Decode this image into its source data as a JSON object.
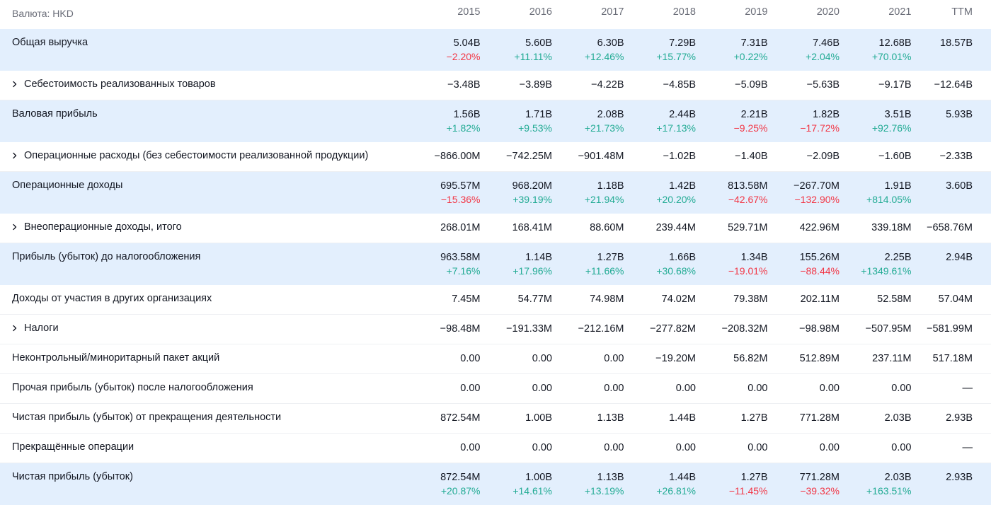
{
  "header": {
    "currency_label": "Валюта: HKD",
    "columns": [
      "2015",
      "2016",
      "2017",
      "2018",
      "2019",
      "2020",
      "2021",
      "TTM"
    ]
  },
  "rows": [
    {
      "label": "Общая выручка",
      "values": [
        "5.04B",
        "5.60B",
        "6.30B",
        "7.29B",
        "7.31B",
        "7.46B",
        "12.68B",
        "18.57B"
      ],
      "changes": [
        "−2.20%",
        "+11.11%",
        "+12.46%",
        "+15.77%",
        "+0.22%",
        "+2.04%",
        "+70.01%",
        ""
      ]
    },
    {
      "label": "Себестоимость реализованных товаров",
      "expandable": true,
      "values": [
        "−3.48B",
        "−3.89B",
        "−4.22B",
        "−4.85B",
        "−5.09B",
        "−5.63B",
        "−9.17B",
        "−12.64B"
      ]
    },
    {
      "label": "Валовая прибыль",
      "values": [
        "1.56B",
        "1.71B",
        "2.08B",
        "2.44B",
        "2.21B",
        "1.82B",
        "3.51B",
        "5.93B"
      ],
      "changes": [
        "+1.82%",
        "+9.53%",
        "+21.73%",
        "+17.13%",
        "−9.25%",
        "−17.72%",
        "+92.76%",
        ""
      ]
    },
    {
      "label": "Операционные расходы (без себестоимости реализованной продукции)",
      "expandable": true,
      "values": [
        "−866.00M",
        "−742.25M",
        "−901.48M",
        "−1.02B",
        "−1.40B",
        "−2.09B",
        "−1.60B",
        "−2.33B"
      ]
    },
    {
      "label": "Операционные доходы",
      "values": [
        "695.57M",
        "968.20M",
        "1.18B",
        "1.42B",
        "813.58M",
        "−267.70M",
        "1.91B",
        "3.60B"
      ],
      "changes": [
        "−15.36%",
        "+39.19%",
        "+21.94%",
        "+20.20%",
        "−42.67%",
        "−132.90%",
        "+814.05%",
        ""
      ]
    },
    {
      "label": "Внеоперационные доходы, итого",
      "expandable": true,
      "values": [
        "268.01M",
        "168.41M",
        "88.60M",
        "239.44M",
        "529.71M",
        "422.96M",
        "339.18M",
        "−658.76M"
      ]
    },
    {
      "label": "Прибыль (убыток) до налогообложения",
      "values": [
        "963.58M",
        "1.14B",
        "1.27B",
        "1.66B",
        "1.34B",
        "155.26M",
        "2.25B",
        "2.94B"
      ],
      "changes": [
        "+7.16%",
        "+17.96%",
        "+11.66%",
        "+30.68%",
        "−19.01%",
        "−88.44%",
        "+1349.61%",
        ""
      ]
    },
    {
      "label": "Доходы от участия в других организациях",
      "values": [
        "7.45M",
        "54.77M",
        "74.98M",
        "74.02M",
        "79.38M",
        "202.11M",
        "52.58M",
        "57.04M"
      ]
    },
    {
      "label": "Налоги",
      "expandable": true,
      "values": [
        "−98.48M",
        "−191.33M",
        "−212.16M",
        "−277.82M",
        "−208.32M",
        "−98.98M",
        "−507.95M",
        "−581.99M"
      ]
    },
    {
      "label": "Неконтрольный/миноритарный пакет акций",
      "values": [
        "0.00",
        "0.00",
        "0.00",
        "−19.20M",
        "56.82M",
        "512.89M",
        "237.11M",
        "517.18M"
      ]
    },
    {
      "label": "Прочая прибыль (убыток) после налогообложения",
      "values": [
        "0.00",
        "0.00",
        "0.00",
        "0.00",
        "0.00",
        "0.00",
        "0.00",
        "—"
      ]
    },
    {
      "label": "Чистая прибыль (убыток) от прекращения деятельности",
      "values": [
        "872.54M",
        "1.00B",
        "1.13B",
        "1.44B",
        "1.27B",
        "771.28M",
        "2.03B",
        "2.93B"
      ]
    },
    {
      "label": "Прекращённые операции",
      "values": [
        "0.00",
        "0.00",
        "0.00",
        "0.00",
        "0.00",
        "0.00",
        "0.00",
        "—"
      ]
    },
    {
      "label": "Чистая прибыль (убыток)",
      "values": [
        "872.54M",
        "1.00B",
        "1.13B",
        "1.44B",
        "1.27B",
        "771.28M",
        "2.03B",
        "2.93B"
      ],
      "changes": [
        "+20.87%",
        "+14.61%",
        "+13.19%",
        "+26.81%",
        "−11.45%",
        "−39.32%",
        "+163.51%",
        ""
      ]
    }
  ],
  "colors": {
    "highlight_bg": "#e3effd",
    "positive": "#22ab94",
    "negative": "#f23645",
    "header_text": "#6a6d78",
    "text": "#131722"
  },
  "icons": {
    "expand": "chevron-right-icon"
  }
}
